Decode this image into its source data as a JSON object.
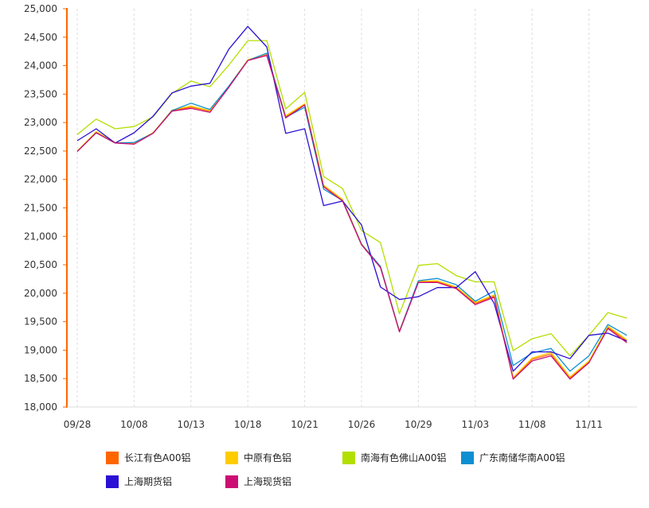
{
  "chart_data": {
    "type": "line",
    "title": "",
    "xlabel": "",
    "ylabel": "",
    "ylim": [
      18000,
      25000
    ],
    "yticks": [
      "18,000",
      "18,500",
      "19,000",
      "19,500",
      "20,000",
      "20,500",
      "21,000",
      "21,500",
      "22,000",
      "22,500",
      "23,000",
      "23,500",
      "24,000",
      "24,500",
      "25,000"
    ],
    "ytick_values": [
      18000,
      18500,
      19000,
      19500,
      20000,
      20500,
      21000,
      21500,
      22000,
      22500,
      23000,
      23500,
      24000,
      24500,
      25000
    ],
    "xtick_labels": [
      "09/28",
      "",
      "",
      "10/08",
      "",
      "",
      "10/13",
      "",
      "",
      "10/18",
      "",
      "",
      "10/21",
      "",
      "",
      "10/26",
      "",
      "",
      "10/29",
      "",
      "",
      "11/03",
      "",
      "",
      "11/08",
      "",
      "",
      "11/11",
      "",
      ""
    ],
    "grid": "vertical dashed at labeled ticks",
    "legend_position": "bottom",
    "series": [
      {
        "name": "长江有色A00铝",
        "color": "#ff6600",
        "values": [
          22500,
          22830,
          22640,
          22630,
          22820,
          23210,
          23270,
          23200,
          23630,
          24100,
          24200,
          23100,
          23320,
          21880,
          21640,
          20860,
          20460,
          19330,
          20200,
          20200,
          20090,
          19820,
          19950,
          18510,
          18840,
          18930,
          18510,
          18800,
          19400,
          19160
        ]
      },
      {
        "name": "中原有色铝",
        "color": "#ffcc00",
        "values": [
          22500,
          22840,
          22650,
          22640,
          22820,
          23220,
          23290,
          23210,
          23640,
          24100,
          24210,
          23120,
          23330,
          21900,
          21650,
          20870,
          20470,
          19340,
          20210,
          20220,
          20110,
          19840,
          19970,
          18520,
          18860,
          18960,
          18530,
          18810,
          19420,
          19180
        ]
      },
      {
        "name": "南海有色佛山A00铝",
        "color": "#b3df00",
        "values": [
          22790,
          23060,
          22890,
          22930,
          23100,
          23510,
          23730,
          23630,
          24010,
          24440,
          24440,
          23240,
          23530,
          22050,
          21840,
          21100,
          20890,
          19640,
          20490,
          20520,
          20310,
          20200,
          20200,
          18990,
          19200,
          19290,
          18900,
          19260,
          19660,
          19560
        ]
      },
      {
        "name": "广东南储华南A00铝",
        "color": "#0e8fd2",
        "values": [
          22490,
          22820,
          22640,
          22650,
          22810,
          23210,
          23340,
          23230,
          23640,
          24090,
          24220,
          23090,
          23270,
          21830,
          21630,
          20860,
          20470,
          19330,
          20220,
          20260,
          20150,
          19860,
          20040,
          18730,
          18950,
          19030,
          18630,
          18900,
          19450,
          19260
        ]
      },
      {
        "name": "上海期货铝",
        "color": "#2a10d4",
        "values": [
          22680,
          22890,
          22640,
          22820,
          23110,
          23520,
          23640,
          23690,
          24290,
          24690,
          24330,
          22810,
          22890,
          21540,
          21620,
          21200,
          20110,
          19890,
          19940,
          20100,
          20100,
          20380,
          19820,
          18630,
          18970,
          18970,
          18850,
          19260,
          19300,
          19160
        ]
      },
      {
        "name": "上海现货铝",
        "color": "#cc0e74",
        "values": [
          22490,
          22820,
          22640,
          22620,
          22810,
          23200,
          23250,
          23180,
          23620,
          24090,
          24180,
          23080,
          23310,
          21870,
          21620,
          20850,
          20450,
          19320,
          20190,
          20190,
          20080,
          19800,
          19930,
          18490,
          18810,
          18900,
          18490,
          18780,
          19380,
          19130
        ]
      }
    ]
  },
  "axis_color": "#ff6600"
}
